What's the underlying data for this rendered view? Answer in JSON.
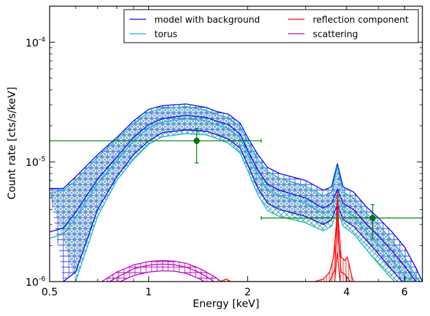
{
  "chart_data": {
    "type": "line",
    "xlabel": "Energy [keV]",
    "ylabel": "Count rate [cts/s/keV]",
    "x_scale": "log",
    "y_scale": "log",
    "xlim": [
      0.5,
      6.8
    ],
    "ylim": [
      1e-06,
      0.0002
    ],
    "x_ticks": [
      {
        "value": 0.5,
        "label": "0.5"
      },
      {
        "value": 1,
        "label": "1"
      },
      {
        "value": 2,
        "label": "2"
      },
      {
        "value": 4,
        "label": "4"
      },
      {
        "value": 6,
        "label": "6"
      }
    ],
    "y_ticks": [
      {
        "value": 1e-06,
        "base": "10",
        "exp": "-6"
      },
      {
        "value": 1e-05,
        "base": "10",
        "exp": "-5"
      },
      {
        "value": 0.0001,
        "base": "10",
        "exp": "-4"
      }
    ],
    "grid": false,
    "legend_position": "top-right",
    "legend": [
      {
        "label": "model with background",
        "color": "#0000ff"
      },
      {
        "label": "reflection component",
        "color": "#ff0000"
      },
      {
        "label": "torus",
        "color": "#00bfbf"
      },
      {
        "label": "scattering",
        "color": "#bf00bf"
      }
    ],
    "series": [
      {
        "name": "model with background",
        "color": "#0000ff",
        "upper": [
          [
            0.5,
            6e-06
          ],
          [
            0.55,
            6e-06
          ],
          [
            0.6,
            7.5e-06
          ],
          [
            0.7,
            1.15e-05
          ],
          [
            0.8,
            1.6e-05
          ],
          [
            0.9,
            2.2e-05
          ],
          [
            1.0,
            2.75e-05
          ],
          [
            1.1,
            2.95e-05
          ],
          [
            1.3,
            3.05e-05
          ],
          [
            1.5,
            2.85e-05
          ],
          [
            1.6,
            2.65e-05
          ],
          [
            1.75,
            2.5e-05
          ],
          [
            1.9,
            2.1e-05
          ],
          [
            2.0,
            1.6e-05
          ],
          [
            2.15,
            1.15e-05
          ],
          [
            2.3,
            9e-06
          ],
          [
            2.5,
            8e-06
          ],
          [
            3.0,
            7e-06
          ],
          [
            3.4,
            5.8e-06
          ],
          [
            3.6,
            6.2e-06
          ],
          [
            3.75,
            9.7e-06
          ],
          [
            3.9,
            6.2e-06
          ],
          [
            4.2,
            5.6e-06
          ],
          [
            4.6,
            4.2e-06
          ],
          [
            5.0,
            3.4e-06
          ],
          [
            5.5,
            2.6e-06
          ],
          [
            6.0,
            1.95e-06
          ],
          [
            6.5,
            1.3e-06
          ],
          [
            6.8,
            1e-06
          ]
        ],
        "middle": [
          [
            0.5,
            2.6e-06
          ],
          [
            0.55,
            2.8e-06
          ],
          [
            0.6,
            3.8e-06
          ],
          [
            0.7,
            7.2e-06
          ],
          [
            0.8,
            1.1e-05
          ],
          [
            0.9,
            1.6e-05
          ],
          [
            1.0,
            2.05e-05
          ],
          [
            1.1,
            2.3e-05
          ],
          [
            1.3,
            2.45e-05
          ],
          [
            1.5,
            2.35e-05
          ],
          [
            1.6,
            2.2e-05
          ],
          [
            1.75,
            2.05e-05
          ],
          [
            1.9,
            1.7e-05
          ],
          [
            2.0,
            1.25e-05
          ],
          [
            2.15,
            8.5e-06
          ],
          [
            2.3,
            6.5e-06
          ],
          [
            2.5,
            5.8e-06
          ],
          [
            3.0,
            5e-06
          ],
          [
            3.4,
            4.1e-06
          ],
          [
            3.6,
            4.5e-06
          ],
          [
            3.75,
            5.9e-06
          ],
          [
            3.9,
            4.5e-06
          ],
          [
            4.2,
            4e-06
          ],
          [
            4.6,
            3e-06
          ],
          [
            5.0,
            2.4e-06
          ],
          [
            5.5,
            1.8e-06
          ],
          [
            6.0,
            1.35e-06
          ],
          [
            6.5,
            1e-06
          ]
        ],
        "lower": [
          [
            0.55,
            1e-06
          ],
          [
            0.6,
            1.2e-06
          ],
          [
            0.7,
            4e-06
          ],
          [
            0.8,
            7.5e-06
          ],
          [
            0.9,
            1.15e-05
          ],
          [
            1.0,
            1.5e-05
          ],
          [
            1.1,
            1.75e-05
          ],
          [
            1.3,
            1.85e-05
          ],
          [
            1.5,
            1.8e-05
          ],
          [
            1.6,
            1.7e-05
          ],
          [
            1.75,
            1.55e-05
          ],
          [
            1.9,
            1.3e-05
          ],
          [
            2.0,
            9.5e-06
          ],
          [
            2.15,
            6e-06
          ],
          [
            2.3,
            4.5e-06
          ],
          [
            2.5,
            4e-06
          ],
          [
            3.0,
            3.5e-06
          ],
          [
            3.4,
            3e-06
          ],
          [
            3.6,
            3.3e-06
          ],
          [
            3.75,
            4.4e-06
          ],
          [
            3.9,
            3.3e-06
          ],
          [
            4.2,
            2.9e-06
          ],
          [
            4.6,
            2.2e-06
          ],
          [
            5.0,
            1.7e-06
          ],
          [
            5.5,
            1.25e-06
          ],
          [
            5.9,
            1e-06
          ]
        ]
      },
      {
        "name": "torus",
        "color": "#00bfbf",
        "upper": [
          [
            0.5,
            5.5e-06
          ],
          [
            0.55,
            5.8e-06
          ],
          [
            0.6,
            7e-06
          ],
          [
            0.7,
            1.1e-05
          ],
          [
            0.8,
            1.55e-05
          ],
          [
            0.9,
            2.1e-05
          ],
          [
            1.0,
            2.6e-05
          ],
          [
            1.1,
            2.8e-05
          ],
          [
            1.3,
            2.9e-05
          ],
          [
            1.5,
            2.7e-05
          ],
          [
            1.6,
            2.5e-05
          ],
          [
            1.75,
            2.35e-05
          ],
          [
            1.9,
            1.95e-05
          ],
          [
            2.0,
            1.5e-05
          ],
          [
            2.15,
            1.05e-05
          ],
          [
            2.3,
            8.3e-06
          ],
          [
            2.5,
            7.3e-06
          ],
          [
            3.0,
            6.3e-06
          ],
          [
            3.4,
            5.2e-06
          ],
          [
            3.6,
            5.6e-06
          ],
          [
            3.75,
            9.2e-06
          ],
          [
            3.9,
            5.6e-06
          ],
          [
            4.2,
            5e-06
          ],
          [
            4.6,
            3.7e-06
          ],
          [
            5.0,
            3e-06
          ],
          [
            5.5,
            2.2e-06
          ],
          [
            6.0,
            1.6e-06
          ],
          [
            6.5,
            1.1e-06
          ],
          [
            6.7,
            1e-06
          ]
        ],
        "middle": [
          [
            0.5,
            2.3e-06
          ],
          [
            0.55,
            2.5e-06
          ],
          [
            0.6,
            3.4e-06
          ],
          [
            0.7,
            6.6e-06
          ],
          [
            0.8,
            1.02e-05
          ],
          [
            0.9,
            1.5e-05
          ],
          [
            1.0,
            1.92e-05
          ],
          [
            1.1,
            2.15e-05
          ],
          [
            1.3,
            2.3e-05
          ],
          [
            1.5,
            2.2e-05
          ],
          [
            1.6,
            2.05e-05
          ],
          [
            1.75,
            1.9e-05
          ],
          [
            1.9,
            1.58e-05
          ],
          [
            2.0,
            1.15e-05
          ],
          [
            2.15,
            7.8e-06
          ],
          [
            2.3,
            5.8e-06
          ],
          [
            2.5,
            5.2e-06
          ],
          [
            3.0,
            4.5e-06
          ],
          [
            3.4,
            3.7e-06
          ],
          [
            3.6,
            4e-06
          ],
          [
            3.75,
            5.4e-06
          ],
          [
            3.9,
            4e-06
          ],
          [
            4.2,
            3.5e-06
          ],
          [
            4.6,
            2.6e-06
          ],
          [
            5.0,
            2.05e-06
          ],
          [
            5.5,
            1.5e-06
          ],
          [
            6.0,
            1.12e-06
          ],
          [
            6.3,
            1e-06
          ]
        ],
        "lower": [
          [
            0.6,
            1e-06
          ],
          [
            0.7,
            3.5e-06
          ],
          [
            0.8,
            7e-06
          ],
          [
            0.9,
            1.05e-05
          ],
          [
            1.0,
            1.4e-05
          ],
          [
            1.1,
            1.62e-05
          ],
          [
            1.3,
            1.72e-05
          ],
          [
            1.5,
            1.68e-05
          ],
          [
            1.6,
            1.58e-05
          ],
          [
            1.75,
            1.43e-05
          ],
          [
            1.9,
            1.18e-05
          ],
          [
            2.0,
            8.5e-06
          ],
          [
            2.15,
            5.3e-06
          ],
          [
            2.3,
            3.9e-06
          ],
          [
            2.5,
            3.5e-06
          ],
          [
            3.0,
            3.1e-06
          ],
          [
            3.4,
            2.65e-06
          ],
          [
            3.6,
            2.9e-06
          ],
          [
            3.75,
            4e-06
          ],
          [
            3.9,
            2.9e-06
          ],
          [
            4.2,
            2.5e-06
          ],
          [
            4.6,
            1.85e-06
          ],
          [
            5.0,
            1.4e-06
          ],
          [
            5.5,
            1.05e-06
          ],
          [
            5.6,
            1e-06
          ]
        ]
      },
      {
        "name": "reflection component",
        "color": "#ff0000",
        "upper": [
          [
            1.65,
            1e-06
          ],
          [
            1.72,
            1.05e-06
          ],
          [
            1.78,
            1e-06
          ],
          [
            3.2,
            1e-06
          ],
          [
            3.4,
            1.05e-06
          ],
          [
            3.55,
            1.2e-06
          ],
          [
            3.65,
            1.6e-06
          ],
          [
            3.72,
            3e-06
          ],
          [
            3.75,
            5.6e-06
          ],
          [
            3.78,
            3e-06
          ],
          [
            3.85,
            1.6e-06
          ],
          [
            3.95,
            1.5e-06
          ],
          [
            4.02,
            1.6e-06
          ],
          [
            4.08,
            1.35e-06
          ],
          [
            4.15,
            1.1e-06
          ],
          [
            4.2,
            1e-06
          ]
        ],
        "middle": [
          [
            3.55,
            1e-06
          ],
          [
            3.68,
            1.25e-06
          ],
          [
            3.72,
            2.2e-06
          ],
          [
            3.75,
            4.5e-06
          ],
          [
            3.78,
            2.2e-06
          ],
          [
            3.85,
            1.2e-06
          ],
          [
            3.95,
            1.15e-06
          ],
          [
            4.05,
            1.05e-06
          ],
          [
            4.1,
            1e-06
          ]
        ],
        "lower": [
          [
            3.68,
            1e-06
          ],
          [
            3.75,
            1.75e-06
          ],
          [
            3.82,
            1e-06
          ]
        ]
      },
      {
        "name": "scattering",
        "color": "#bf00bf",
        "upper": [
          [
            0.72,
            1e-06
          ],
          [
            0.8,
            1.2e-06
          ],
          [
            0.9,
            1.38e-06
          ],
          [
            1.0,
            1.47e-06
          ],
          [
            1.1,
            1.5e-06
          ],
          [
            1.2,
            1.48e-06
          ],
          [
            1.3,
            1.42e-06
          ],
          [
            1.4,
            1.32e-06
          ],
          [
            1.5,
            1.2e-06
          ],
          [
            1.6,
            1.08e-06
          ],
          [
            1.66,
            1e-06
          ]
        ],
        "middle": [
          [
            0.76,
            1e-06
          ],
          [
            0.82,
            1.12e-06
          ],
          [
            0.9,
            1.28e-06
          ],
          [
            1.0,
            1.37e-06
          ],
          [
            1.1,
            1.4e-06
          ],
          [
            1.2,
            1.38e-06
          ],
          [
            1.3,
            1.32e-06
          ],
          [
            1.4,
            1.22e-06
          ],
          [
            1.5,
            1.1e-06
          ],
          [
            1.58,
            1e-06
          ]
        ],
        "lower": [
          [
            0.82,
            1e-06
          ],
          [
            0.9,
            1.12e-06
          ],
          [
            1.0,
            1.2e-06
          ],
          [
            1.1,
            1.23e-06
          ],
          [
            1.2,
            1.22e-06
          ],
          [
            1.3,
            1.17e-06
          ],
          [
            1.4,
            1.08e-06
          ],
          [
            1.48,
            1e-06
          ]
        ]
      }
    ],
    "data_points": [
      {
        "x": 1.4,
        "y": 1.5e-05,
        "xerr": [
          0.5,
          2.2
        ],
        "yerr": [
          9.8e-06,
          1.9e-05
        ],
        "color": "#007f00"
      },
      {
        "x": 4.8,
        "y": 3.4e-06,
        "xerr": [
          2.2,
          6.8
        ],
        "yerr": [
          2.3e-06,
          4.4e-06
        ],
        "color": "#007f00"
      }
    ]
  }
}
